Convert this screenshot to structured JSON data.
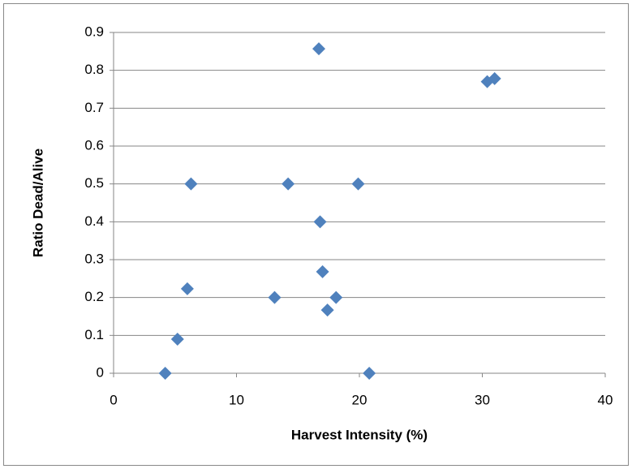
{
  "chart_data": {
    "type": "scatter",
    "x_label": "Harvest Intensity (%)",
    "y_label": "Ratio Dead/Alive",
    "x": [
      4.2,
      5.2,
      6.0,
      6.3,
      13.1,
      14.2,
      16.7,
      16.8,
      17.0,
      17.4,
      18.1,
      19.9,
      20.8,
      30.4,
      31.0
    ],
    "y": [
      0,
      0.09,
      0.223,
      0.5,
      0.2,
      0.5,
      0.857,
      0.4,
      0.268,
      0.167,
      0.2,
      0.5,
      0,
      0.77,
      0.778
    ],
    "color": "#4f81bd",
    "xlim": [
      0,
      40
    ],
    "xticks": [
      0,
      10,
      20,
      30,
      40
    ],
    "ylim": [
      0,
      0.9
    ],
    "yticks": [
      0,
      0.1,
      0.2,
      0.3,
      0.4,
      0.5,
      0.6,
      0.7,
      0.8,
      0.9
    ],
    "grid": true
  }
}
